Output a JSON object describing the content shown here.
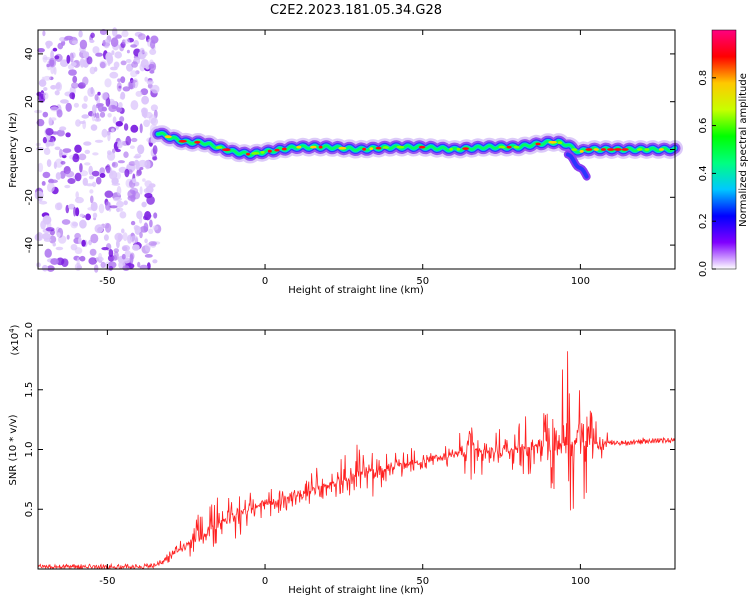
{
  "title": "C2E2.2023.181.05.34.G28",
  "chart_data": [
    {
      "type": "heatmap",
      "title": "C2E2.2023.181.05.34.G28",
      "xlabel": "Height of straight line (km)",
      "ylabel": "Frequency (Hz)",
      "xlim": [
        -72,
        130
      ],
      "ylim": [
        -50,
        50
      ],
      "x_ticks": [
        -50,
        0,
        50,
        100
      ],
      "y_ticks": [
        -40,
        -20,
        0,
        20,
        40
      ],
      "x_tick_labels": [
        "-50",
        "0",
        "50",
        "100"
      ],
      "y_tick_labels": [
        "-40",
        "-20",
        "0",
        "20",
        "40"
      ],
      "noise_region_x": [
        -72,
        -34
      ],
      "signal_track": {
        "x": [
          -34,
          -30,
          -25,
          -20,
          -15,
          -10,
          -5,
          0,
          10,
          20,
          30,
          40,
          50,
          60,
          70,
          80,
          85,
          90,
          93,
          96,
          98,
          100,
          102,
          110,
          120,
          130
        ],
        "freq": [
          7,
          5,
          3,
          3,
          1,
          -1,
          -2,
          -1,
          1,
          1,
          0,
          1,
          1,
          0,
          1,
          1,
          2,
          3,
          3,
          2,
          0,
          -1,
          0,
          0,
          0,
          0
        ]
      },
      "drop_branch": {
        "x": [
          96,
          98,
          100,
          102
        ],
        "freq": [
          -2,
          -5,
          -8,
          -11
        ]
      },
      "colorbar": {
        "label": "Normalized spectral amplitude",
        "range": [
          0,
          1
        ],
        "ticks": [
          0.0,
          0.2,
          0.4,
          0.6,
          0.8
        ],
        "tick_labels": [
          "0.0",
          "0.2",
          "0.4",
          "0.6",
          "0.8"
        ],
        "colors": [
          "#ffffff",
          "#8000ff",
          "#0000ff",
          "#00c8ff",
          "#00ff80",
          "#00ff00",
          "#c8ff00",
          "#ffc800",
          "#ff0000",
          "#ff0080"
        ]
      }
    },
    {
      "type": "line",
      "xlabel": "Height of straight line (km)",
      "ylabel": "SNR (10 * v/v)",
      "multiplier_label": "(x10",
      "multiplier_exp": "4",
      "xlim": [
        -72,
        130
      ],
      "ylim": [
        0,
        2.0
      ],
      "x_ticks": [
        -50,
        0,
        50,
        100
      ],
      "y_ticks": [
        0.5,
        1.0,
        1.5,
        2.0
      ],
      "x_tick_labels": [
        "-50",
        "0",
        "50",
        "100"
      ],
      "y_tick_labels": [
        "0.5",
        "1.0",
        "1.5",
        "2.0"
      ],
      "color": "#ff2020",
      "envelope": {
        "x": [
          -72,
          -40,
          -35,
          -30,
          -25,
          -20,
          -15,
          -10,
          -5,
          0,
          10,
          20,
          30,
          40,
          50,
          60,
          65,
          70,
          80,
          90,
          95,
          100,
          103,
          110,
          120,
          130
        ],
        "baseline": [
          0.02,
          0.02,
          0.03,
          0.1,
          0.2,
          0.28,
          0.38,
          0.45,
          0.5,
          0.55,
          0.62,
          0.7,
          0.8,
          0.86,
          0.9,
          0.96,
          0.98,
          0.98,
          1.0,
          1.05,
          1.05,
          1.05,
          1.06,
          1.05,
          1.07,
          1.08
        ],
        "spread": [
          0.0,
          0.0,
          0.0,
          0.05,
          0.15,
          0.3,
          0.3,
          0.25,
          0.2,
          0.15,
          0.2,
          0.3,
          0.35,
          0.15,
          0.12,
          0.12,
          0.35,
          0.2,
          0.25,
          0.45,
          0.9,
          0.85,
          0.4,
          0.03,
          0.02,
          0.02
        ]
      }
    }
  ]
}
